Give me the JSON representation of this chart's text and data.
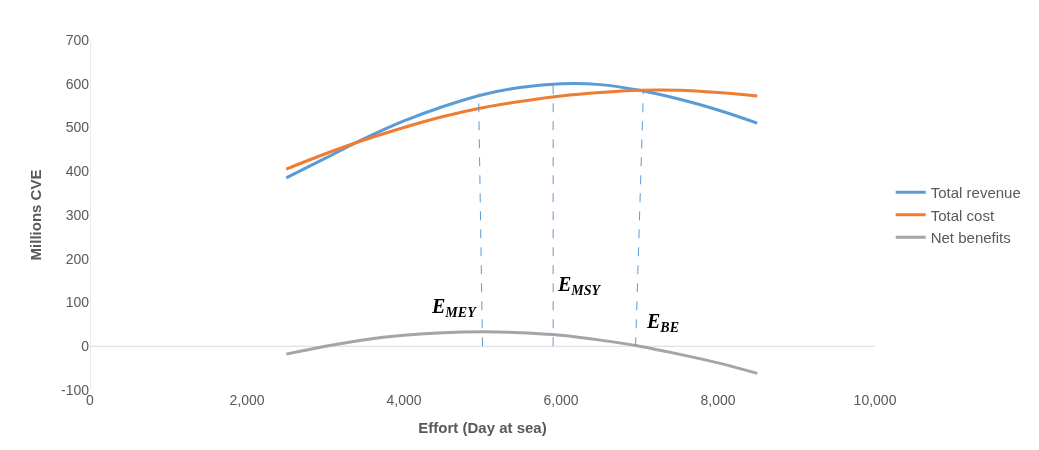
{
  "chart_data": {
    "type": "line",
    "xlabel": "Effort (Day at sea)",
    "ylabel": "Millions CVE",
    "x": [
      2500,
      3000,
      3500,
      4000,
      4500,
      5000,
      5500,
      6000,
      6500,
      7000,
      7500,
      8000,
      8500
    ],
    "series": [
      {
        "name": "Total revenue",
        "color": "#5b9bd5",
        "values": [
          385,
          430,
          475,
          515,
          548,
          575,
          592,
          600,
          598,
          585,
          565,
          540,
          510
        ]
      },
      {
        "name": "Total cost",
        "color": "#ed7d31",
        "values": [
          405,
          440,
          472,
          500,
          525,
          545,
          560,
          572,
          580,
          585,
          585,
          580,
          572
        ]
      },
      {
        "name": "Net benefits",
        "color": "#a5a5a5",
        "values": [
          -18,
          0,
          15,
          25,
          31,
          33,
          31,
          25,
          14,
          0,
          -18,
          -38,
          -62
        ]
      },
      {
        "color": "#5b9bd5",
        "line_style": "dashed",
        "x": [
          5000,
          4950
        ],
        "values": [
          0,
          578
        ]
      },
      {
        "color": "#5b9bd5",
        "line_style": "dashed",
        "x": [
          5900,
          5900
        ],
        "values": [
          0,
          598
        ]
      },
      {
        "color": "#5b9bd5",
        "line_style": "dashed",
        "x": [
          6950,
          7050
        ],
        "values": [
          0,
          585
        ]
      }
    ],
    "annotations": [
      "E$_{MEY}$",
      "E$_{MSY}$",
      "E$_{BE}$"
    ],
    "xlim": [
      0,
      10000
    ],
    "xticks": [
      {
        "value": 0,
        "label": "0"
      },
      {
        "value": 2000,
        "label": "2,000"
      },
      {
        "value": 4000,
        "label": "4,000"
      },
      {
        "value": 6000,
        "label": "6,000"
      },
      {
        "value": 8000,
        "label": "8,000"
      },
      {
        "value": 10000,
        "label": "10,000"
      }
    ],
    "ylim": [
      -100,
      700
    ],
    "yticks": [
      -100,
      0,
      100,
      200,
      300,
      400,
      500,
      600,
      700
    ],
    "ref_lines": [
      {
        "axis": "y",
        "value": 0,
        "color": "#d9d9d9"
      }
    ],
    "grid": false,
    "legend": "right",
    "marker": "none",
    "line_style": "solid"
  }
}
